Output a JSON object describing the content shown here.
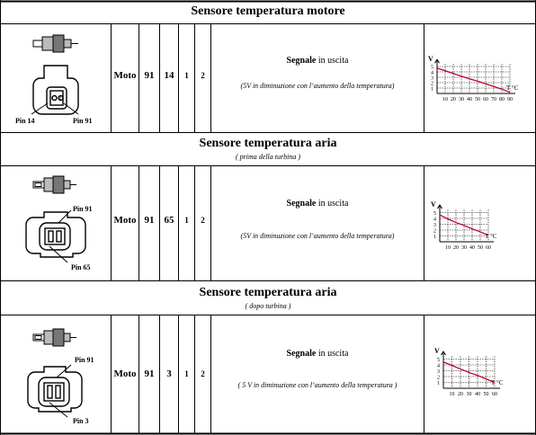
{
  "sections": [
    {
      "title": "Sensore temperatura motore",
      "subtitle": "",
      "pin_a": "Pin 14",
      "pin_b": "Pin 91",
      "connector_nums": [
        "1",
        "2"
      ],
      "system": "Moto",
      "pin1": "91",
      "pin2": "14",
      "n1": "1",
      "n2": "2",
      "signal_bold": "Segnale",
      "signal_rest": " in uscita",
      "signal_note": "(5V in diminuzione con l’aumento della temperatura)",
      "graph": {
        "y_label": "V",
        "x_label": "T °C",
        "y_ticks": [
          "5",
          "4",
          "3",
          "2",
          "1"
        ],
        "x_ticks": [
          "10",
          "20",
          "30",
          "40",
          "50",
          "60",
          "70",
          "80",
          "90"
        ]
      }
    },
    {
      "title": "Sensore temperatura aria",
      "subtitle": "( prima della turbina )",
      "pin_a": "Pin 91",
      "pin_b": "Pin 65",
      "system": "Moto",
      "pin1": "91",
      "pin2": "65",
      "n1": "1",
      "n2": "2",
      "signal_bold": "Segnale",
      "signal_rest": " in uscita",
      "signal_note": "(5V in diminuzione con l’aumento della temperatura)",
      "graph": {
        "y_label": "V",
        "x_label": "T °C",
        "y_ticks": [
          "5",
          "4",
          "3",
          "2",
          "1"
        ],
        "x_ticks": [
          "10",
          "20",
          "30",
          "40",
          "50",
          "60"
        ]
      }
    },
    {
      "title": "Sensore temperatura aria",
      "subtitle": "( dopo turbina )",
      "pin_a": "Pin 91",
      "pin_b": "Pin 3",
      "system": "Moto",
      "pin1": "91",
      "pin2": "3",
      "n1": "1",
      "n2": "2",
      "signal_bold": "Segnale",
      "signal_rest": " in uscita",
      "signal_note": "( 5 V in diminuzione con l’aumento della temperatura )",
      "graph": {
        "y_label": "V",
        "x_label": "T °C",
        "y_ticks": [
          "5",
          "4",
          "3",
          "2",
          "1"
        ],
        "x_ticks": [
          "10",
          "20",
          "30",
          "40",
          "50",
          "60"
        ]
      }
    }
  ],
  "colors": {
    "curve": "#c0002a",
    "grid": "#000000",
    "rule": "#000000"
  }
}
